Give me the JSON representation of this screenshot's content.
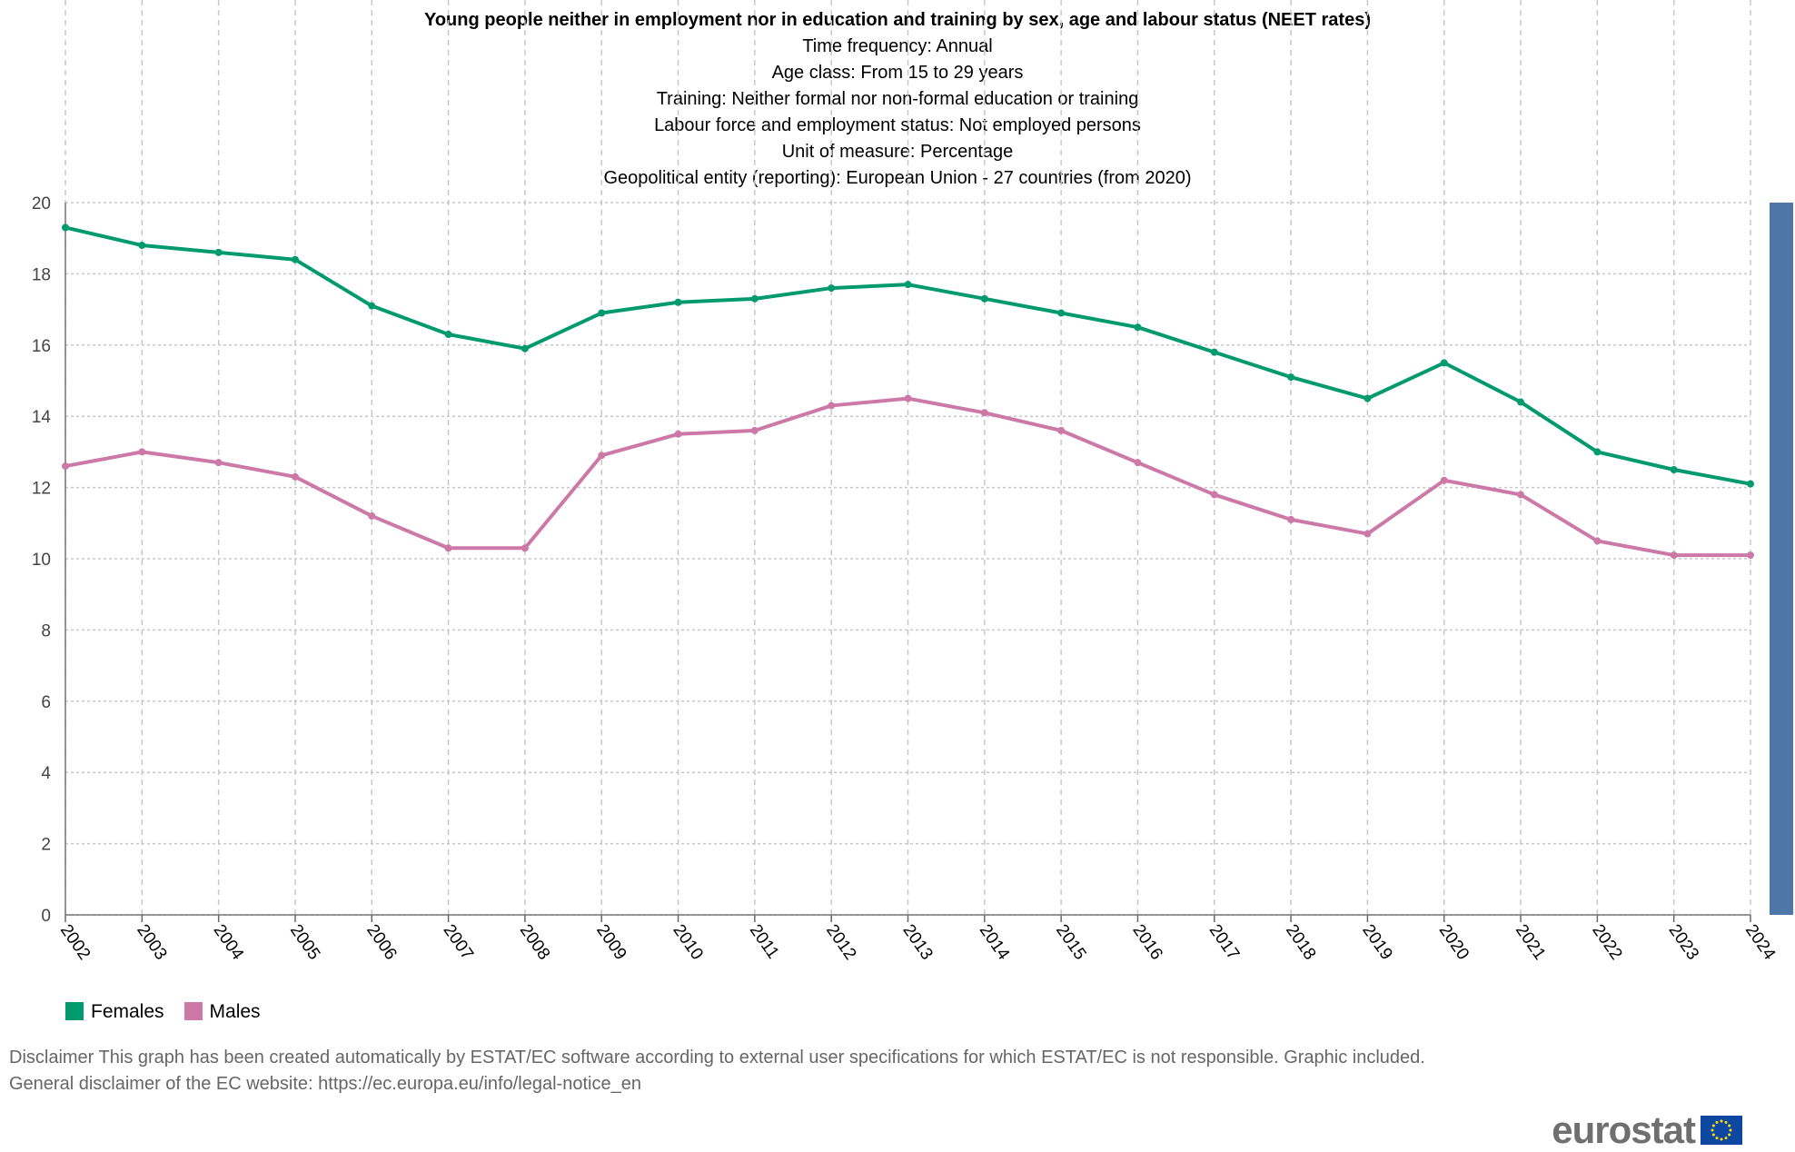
{
  "chart_data": {
    "type": "line",
    "title": "Young people neither in employment nor in education and training by sex, age and labour status (NEET rates)",
    "subtitles": [
      "Time frequency:  Annual",
      "Age class:  From 15 to 29 years",
      "Training:  Neither formal nor non-formal education or training",
      "Labour force and employment status:  Not employed persons",
      "Unit of measure:  Percentage",
      "Geopolitical entity (reporting):  European Union - 27 countries (from 2020)"
    ],
    "x": [
      "2002",
      "2003",
      "2004",
      "2005",
      "2006",
      "2007",
      "2008",
      "2009",
      "2010",
      "2011",
      "2012",
      "2013",
      "2014",
      "2015",
      "2016",
      "2017",
      "2018",
      "2019",
      "2020",
      "2021",
      "2022",
      "2023",
      "2024"
    ],
    "yticks": [
      0,
      2,
      4,
      6,
      8,
      10,
      12,
      14,
      16,
      18,
      20
    ],
    "ylim": [
      0,
      20
    ],
    "grid": true,
    "legend_position": "bottom-left",
    "series": [
      {
        "name": "Females",
        "color": "#009a6e",
        "values": [
          19.3,
          18.8,
          18.6,
          18.4,
          17.1,
          16.3,
          15.9,
          16.9,
          17.2,
          17.3,
          17.6,
          17.7,
          17.3,
          16.9,
          16.5,
          15.8,
          15.1,
          14.5,
          15.5,
          14.4,
          13.0,
          12.5,
          12.1
        ]
      },
      {
        "name": "Males",
        "color": "#cc79a7",
        "values": [
          12.6,
          13.0,
          12.7,
          12.3,
          11.2,
          10.3,
          10.3,
          12.9,
          13.5,
          13.6,
          14.3,
          14.5,
          14.1,
          13.6,
          12.7,
          11.8,
          11.1,
          10.7,
          12.2,
          11.8,
          10.5,
          10.1,
          10.1
        ]
      }
    ]
  },
  "disclaimer": [
    "Disclaimer This graph has been created automatically by ESTAT/EC software according to external user specifications for which ESTAT/EC is not responsible. Graphic included.",
    "General disclaimer of the EC website: https://ec.europa.eu/info/legal-notice_en"
  ],
  "logo": "eurostat",
  "colors": {
    "scrollbar": "#4e76a6"
  }
}
